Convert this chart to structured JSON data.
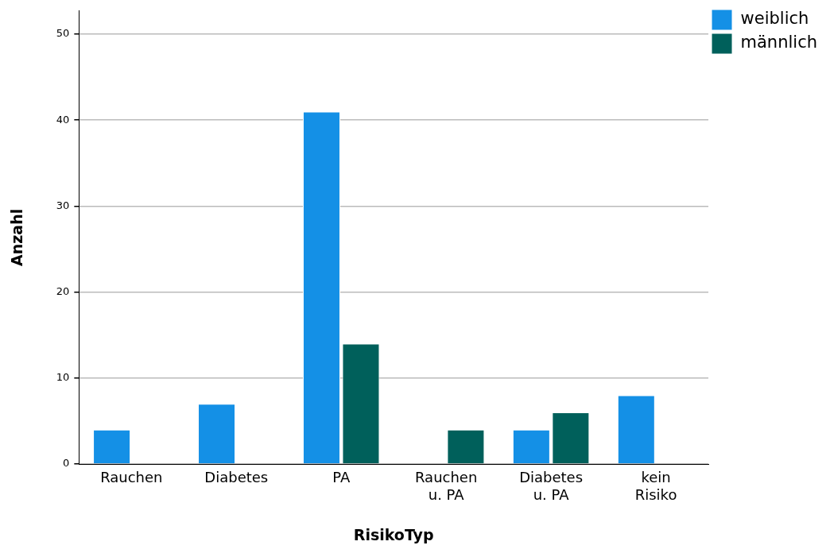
{
  "chart_data": {
    "type": "bar",
    "xlabel": "RisikoTyp",
    "ylabel": "Anzahl",
    "categories": [
      "Rauchen",
      "Diabetes",
      "PA",
      "Rauchen u. PA",
      "Diabetes u. PA",
      "kein Risiko"
    ],
    "series": [
      {
        "name": "weiblich",
        "color": "#1490e6",
        "values": [
          4,
          7,
          41,
          null,
          4,
          8
        ]
      },
      {
        "name": "männlich",
        "color": "#00605b",
        "values": [
          null,
          null,
          14,
          4,
          6,
          null
        ]
      }
    ],
    "ylim": [
      0,
      52.7
    ],
    "yticks": [
      0,
      10,
      20,
      30,
      40,
      50
    ],
    "grid": "y",
    "legend": "top right"
  }
}
